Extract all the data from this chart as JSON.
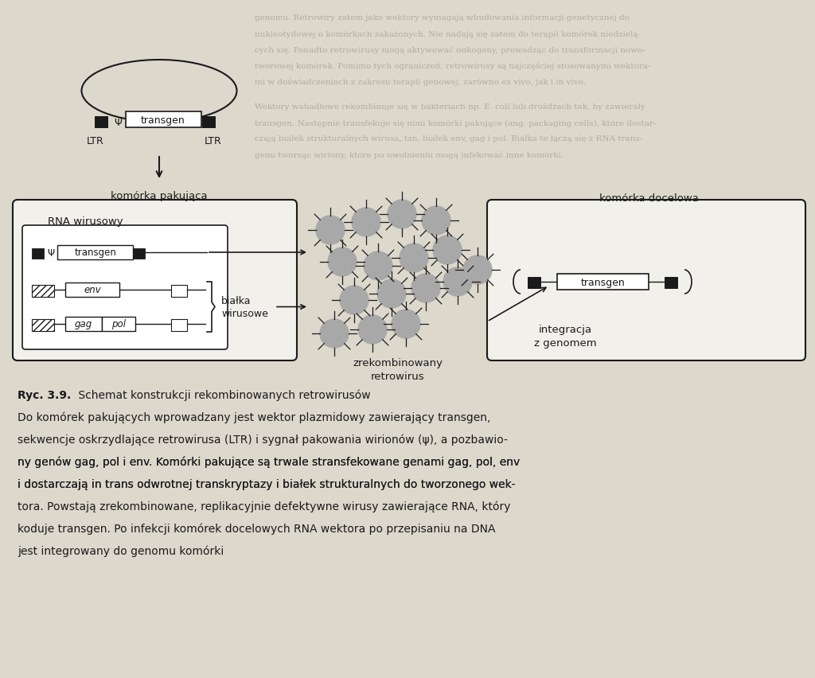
{
  "bg_color": "#ddd8cc",
  "line_color": "#1a1a1a",
  "gray_virus": "#a8a8a8",
  "dark_block": "#1a1a1a",
  "box_fill": "#ffffff",
  "light_fill": "#f2f0eb",
  "title_bold": "Ryc. 3.9.",
  "title_rest": " Schemat konstrukcji rekombinowanych retrowirusów",
  "caption_lines": [
    {
      "text": "Do komórek pakujących wprowadzany jest wektor plazmidowy zawierający transgen,",
      "italic_parts": []
    },
    {
      "text": "sekwencje oskrzydlające retrowirusa (LTR) i sygnał pakowania wirionów (ψ), a pozbawio-",
      "italic_parts": []
    },
    {
      "text": "ny genów gag, pol i env. Komórki pakujące są trwale stransfekowane genami gag, pol, env",
      "italic_parts": [
        [
          "gag, pol",
          9
        ],
        [
          "pol",
          18
        ],
        [
          "env",
          22
        ],
        [
          "gag, pol, env",
          57
        ]
      ]
    },
    {
      "text": "i dostarczają in trans odwrotnej transkryptazy i białek strukturalnych do tworzonego wek-",
      "italic_parts": [
        [
          "in trans",
          13
        ]
      ]
    },
    {
      "text": "tora. Powstają zrekombinowane, replikacyjnie defektywne wirusy zawierające RNA, który",
      "italic_parts": []
    },
    {
      "text": "koduje transgen. Po infekcji komórek docelowych RNA wektora po przepisaniu na DNA",
      "italic_parts": []
    },
    {
      "text": "jest integrowany do genomu komórki",
      "italic_parts": []
    }
  ]
}
